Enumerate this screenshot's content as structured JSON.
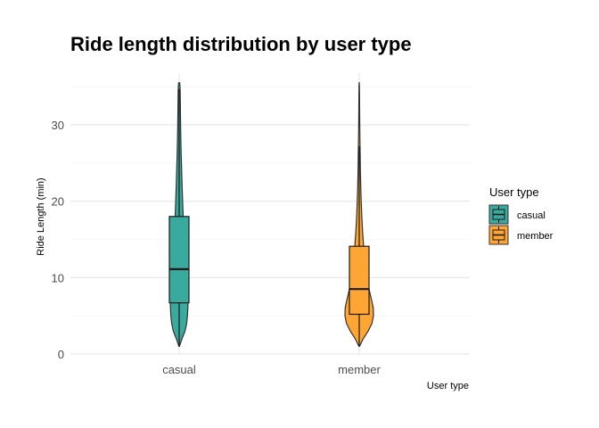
{
  "chart_data": {
    "type": "violin",
    "title": "Ride length distribution by user type",
    "xlabel": "User type",
    "ylabel": "Ride Length (min)",
    "categories": [
      "casual",
      "member"
    ],
    "ylim": [
      0,
      36
    ],
    "yticks": [
      0,
      10,
      20,
      30
    ],
    "grid": true,
    "legend": {
      "title": "User type",
      "position": "right",
      "entries": [
        "casual",
        "member"
      ]
    },
    "series": [
      {
        "name": "casual",
        "color": "#3aa99e",
        "box": {
          "min": 1,
          "q1": 6.7,
          "median": 11.1,
          "q3": 18,
          "max": 34.7
        },
        "density": [
          [
            1,
            0.3
          ],
          [
            2,
            3.2
          ],
          [
            3,
            6.6
          ],
          [
            4,
            8.4
          ],
          [
            5,
            9.3
          ],
          [
            6,
            9.8
          ],
          [
            7,
            10
          ],
          [
            8,
            9.6
          ],
          [
            9,
            8.8
          ],
          [
            10,
            8
          ],
          [
            12,
            6.8
          ],
          [
            14,
            6
          ],
          [
            16,
            5.2
          ],
          [
            18,
            4.5
          ],
          [
            20,
            3.9
          ],
          [
            22,
            3.3
          ],
          [
            24,
            2.8
          ],
          [
            26,
            2.3
          ],
          [
            28,
            1.9
          ],
          [
            30,
            1.6
          ],
          [
            32,
            1.4
          ],
          [
            34,
            1.2
          ],
          [
            35,
            1
          ],
          [
            35.5,
            0.6
          ]
        ]
      },
      {
        "name": "member",
        "color": "#ffa533",
        "box": {
          "min": 1,
          "q1": 5.2,
          "median": 8.5,
          "q3": 14.1,
          "max": 27.2
        },
        "density": [
          [
            1,
            0.3
          ],
          [
            2,
            4.5
          ],
          [
            3,
            10
          ],
          [
            4,
            14.3
          ],
          [
            5,
            16
          ],
          [
            6,
            15.8
          ],
          [
            7,
            14
          ],
          [
            8,
            12
          ],
          [
            9,
            10.1
          ],
          [
            10,
            8.7
          ],
          [
            12,
            6.6
          ],
          [
            14,
            5
          ],
          [
            16,
            3.8
          ],
          [
            18,
            2.9
          ],
          [
            20,
            2.2
          ],
          [
            22,
            1.7
          ],
          [
            24,
            1.3
          ],
          [
            26,
            1.1
          ],
          [
            28,
            0.8
          ],
          [
            30,
            0.6
          ],
          [
            32,
            0.45
          ],
          [
            34,
            0.35
          ],
          [
            35,
            0.25
          ],
          [
            35.5,
            0.1
          ]
        ]
      }
    ]
  }
}
